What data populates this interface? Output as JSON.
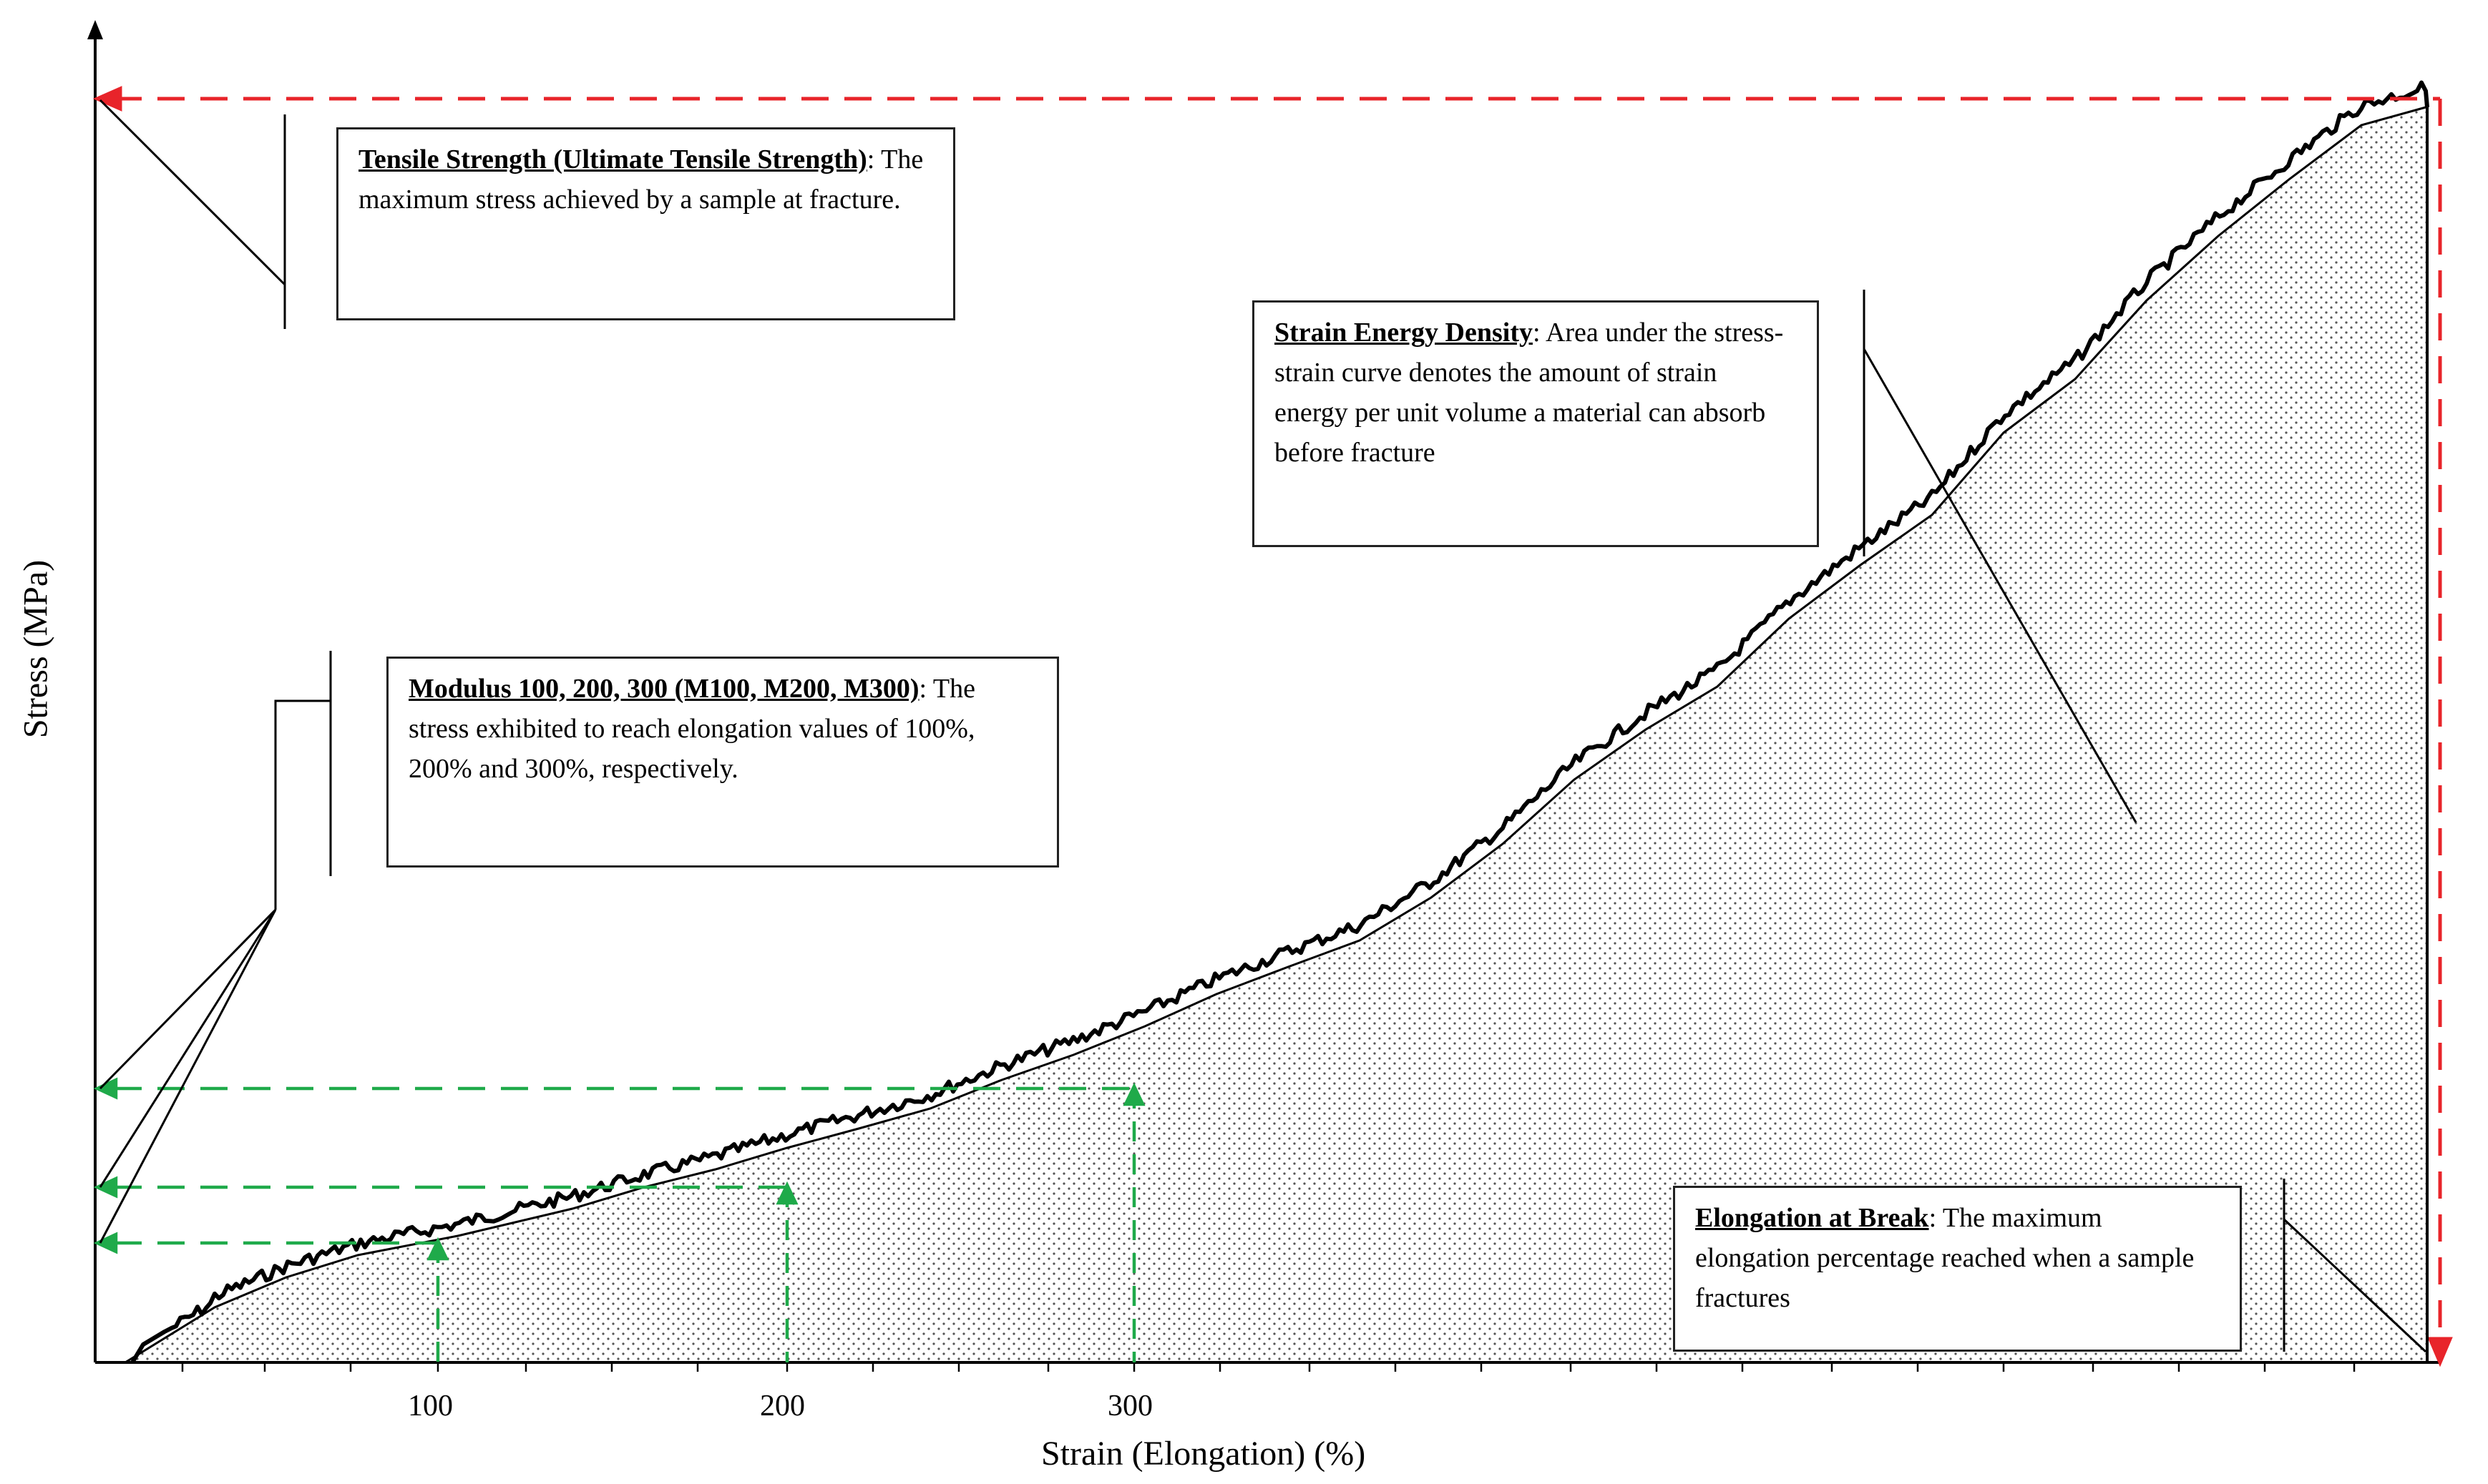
{
  "axes": {
    "x_title": "Strain (Elongation) (%)",
    "y_title": "Stress  (MPa)",
    "x_ticks": [
      "100",
      "200",
      "300"
    ]
  },
  "callouts": {
    "tensile": {
      "term": "Tensile Strength (Ultimate Tensile Strength)",
      "text": ": The maximum stress achieved by a sample at fracture."
    },
    "strain_energy": {
      "term": "Strain Energy Density",
      "text": ": Area under the stress-strain curve denotes the amount of strain energy per unit volume a material can absorb before fracture"
    },
    "modulus": {
      "term": "Modulus 100, 200, 300 (M100, M200, M300)",
      "text": ": The stress exhibited to reach elongation values of 100%, 200% and 300%, respectively."
    },
    "elongation": {
      "term": "Elongation at Break",
      "text": ": The maximum elongation percentage reached when a sample fractures"
    }
  },
  "colors": {
    "tensile_marker": "#e8242a",
    "modulus_marker": "#1faa4a",
    "curve": "#000000",
    "fill_dots": "#555555"
  }
}
